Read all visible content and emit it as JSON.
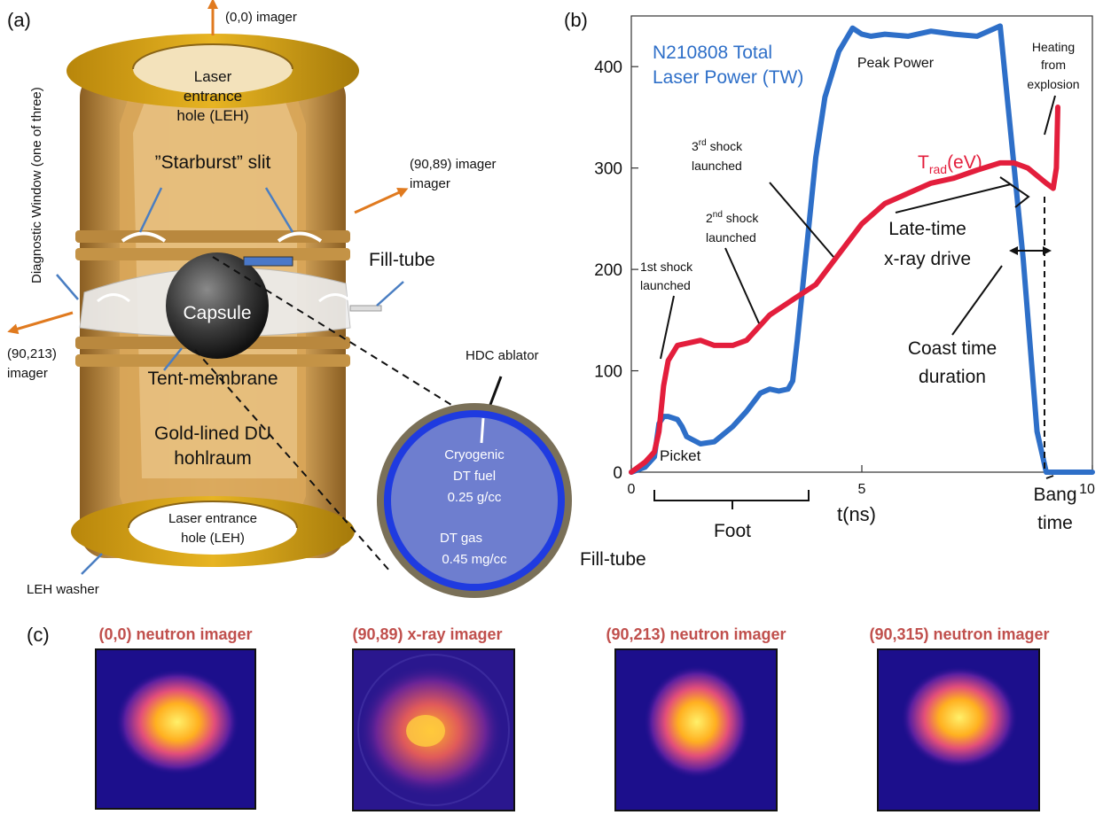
{
  "panel_a": {
    "letter": "(a)",
    "arrow_labels": {
      "top": "(0,0) imager",
      "right": "(90,89) imager",
      "left_1": "(90,213)",
      "left_2": "imager"
    },
    "diagnostic_window": "Diagnostic Window (one of three)",
    "leh_top": [
      "Laser",
      "entrance",
      "hole (LEH)"
    ],
    "starburst": "”Starburst” slit",
    "fill_tube": "Fill-tube",
    "capsule": "Capsule",
    "tent_membrane": "Tent-membrane",
    "hohlraum": [
      "Gold-lined DU",
      "hohlraum"
    ],
    "leh_bottom": [
      "Laser entrance",
      "hole (LEH)"
    ],
    "leh_washer": "LEH washer",
    "inset": {
      "hdc": "HDC ablator",
      "fuel": [
        "Cryogenic",
        "DT fuel",
        "0.25 g/cc"
      ],
      "gas": [
        "DT gas",
        "0.45 mg/cc"
      ],
      "fill_tube": "Fill-tube"
    }
  },
  "panel_b": {
    "letter": "(b)",
    "annotations": {
      "title_1": "N210808 Total",
      "title_2": "Laser Power (TW)",
      "peak": "Peak Power",
      "heating": [
        "Heating",
        "from",
        "explosion"
      ],
      "trad_main": "T",
      "trad_sub": "rad",
      "trad_unit": "(eV)",
      "shock3": [
        "3",
        "rd",
        " shock",
        "launched"
      ],
      "shock2": [
        "2",
        "nd",
        " shock",
        "launched"
      ],
      "shock1": [
        "1st shock",
        "launched"
      ],
      "late_time": [
        "Late-time",
        "x-ray drive"
      ],
      "coast": [
        "Coast time",
        "duration"
      ],
      "picket": "Picket",
      "foot": "Foot",
      "bang": [
        "Bang",
        "time"
      ]
    }
  },
  "panel_c": {
    "letter": "(c)",
    "images": [
      {
        "title": "(0,0) neutron imager"
      },
      {
        "title": "(90,89) x-ray imager"
      },
      {
        "title": "(90,213) neutron imager"
      },
      {
        "title": "(90,315) neutron imager"
      }
    ]
  },
  "colors": {
    "laser": "#2E6FC8",
    "trad": "#E31E3C",
    "orange": "#E07A1F",
    "title_red": "#C0504D"
  },
  "chart_data": {
    "type": "line",
    "x_range": [
      0,
      10
    ],
    "y_range": [
      0,
      450
    ],
    "x_ticks": [
      "0",
      "5",
      "10"
    ],
    "y_ticks": [
      "0",
      "100",
      "200",
      "300",
      "400"
    ],
    "xlabel": "t(ns)",
    "series": [
      {
        "name": "N210808 Total Laser Power (TW)",
        "x": [
          0,
          0.3,
          0.5,
          0.6,
          0.7,
          0.8,
          1.0,
          1.1,
          1.2,
          1.5,
          1.8,
          2.2,
          2.5,
          2.8,
          3.0,
          3.2,
          3.4,
          3.5,
          3.6,
          3.8,
          4.0,
          4.2,
          4.5,
          4.8,
          5.0,
          5.2,
          5.5,
          6.0,
          6.5,
          7.0,
          7.5,
          8.0,
          8.5,
          8.8,
          9.0,
          9.2,
          10.0
        ],
        "y": [
          0,
          5,
          15,
          48,
          55,
          55,
          52,
          45,
          35,
          28,
          30,
          45,
          60,
          78,
          82,
          80,
          82,
          90,
          130,
          220,
          310,
          370,
          415,
          438,
          432,
          430,
          432,
          430,
          435,
          432,
          430,
          440,
          210,
          40,
          0,
          0,
          0
        ]
      },
      {
        "name": "T",
        "x": [
          0,
          0.3,
          0.5,
          0.6,
          0.7,
          0.8,
          1.0,
          1.5,
          1.8,
          2.2,
          2.5,
          2.8,
          3.0,
          3.5,
          4.0,
          4.5,
          5.0,
          5.5,
          6.0,
          6.5,
          7.0,
          7.5,
          8.0,
          8.3,
          8.6,
          9.0,
          9.15,
          9.22,
          9.25
        ],
        "y": [
          0,
          10,
          20,
          40,
          85,
          110,
          125,
          130,
          125,
          125,
          130,
          145,
          155,
          170,
          185,
          215,
          245,
          265,
          275,
          285,
          290,
          298,
          305,
          305,
          300,
          285,
          280,
          300,
          360
        ]
      }
    ]
  }
}
